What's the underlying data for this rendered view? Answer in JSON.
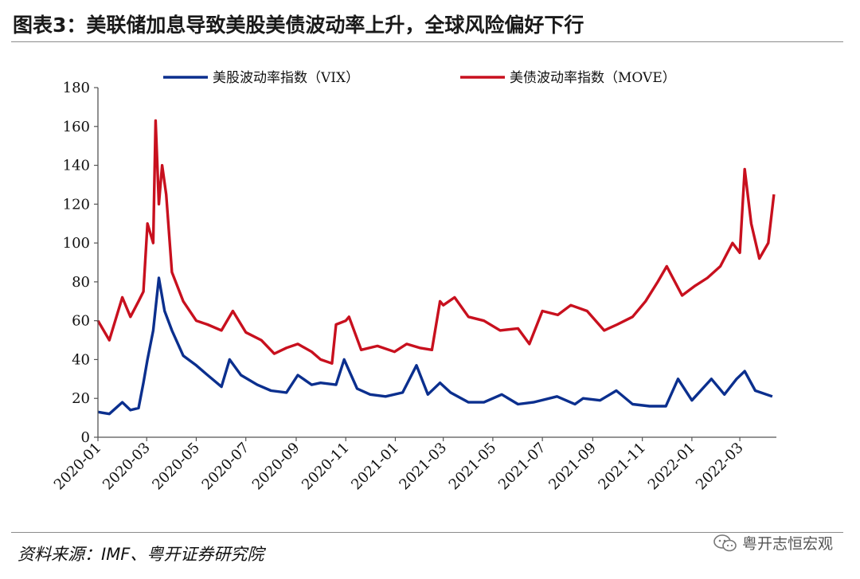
{
  "header": {
    "title": "图表3：美联储加息导致美股美债波动率上升，全球风险偏好下行"
  },
  "footer": {
    "source": "资料来源：IMF、粤开证券研究院",
    "watermark": "粤开志恒宏观"
  },
  "colors": {
    "vix": "#0b2f8e",
    "move": "#c8101e",
    "axis": "#555555"
  },
  "chart_data": {
    "type": "line",
    "title": "图表3：美联储加息导致美股美债波动率上升，全球风险偏好下行",
    "xlabel": "",
    "ylabel": "",
    "ylim": [
      0,
      180
    ],
    "yticks": [
      0,
      20,
      40,
      60,
      80,
      100,
      120,
      140,
      160,
      180
    ],
    "xlim": [
      "2020-01-01",
      "2022-04-15"
    ],
    "xticks": [
      "2020-01",
      "2020-03",
      "2020-05",
      "2020-07",
      "2020-09",
      "2020-11",
      "2021-01",
      "2021-03",
      "2021-05",
      "2021-07",
      "2021-09",
      "2021-11",
      "2022-01",
      "2022-03"
    ],
    "grid": false,
    "legend_position": "top-center",
    "series": [
      {
        "name": "美股波动率指数（VIX）",
        "x": [
          "2020-01-01",
          "2020-01-15",
          "2020-01-31",
          "2020-02-10",
          "2020-02-20",
          "2020-02-26",
          "2020-03-02",
          "2020-03-09",
          "2020-03-16",
          "2020-03-23",
          "2020-04-01",
          "2020-04-15",
          "2020-05-01",
          "2020-05-15",
          "2020-06-01",
          "2020-06-11",
          "2020-06-25",
          "2020-07-15",
          "2020-08-01",
          "2020-08-20",
          "2020-09-03",
          "2020-09-20",
          "2020-10-01",
          "2020-10-20",
          "2020-10-30",
          "2020-11-15",
          "2020-12-01",
          "2020-12-20",
          "2021-01-10",
          "2021-01-27",
          "2021-02-10",
          "2021-02-25",
          "2021-03-10",
          "2021-04-01",
          "2021-04-20",
          "2021-05-12",
          "2021-06-01",
          "2021-06-20",
          "2021-07-19",
          "2021-08-10",
          "2021-08-20",
          "2021-09-10",
          "2021-09-30",
          "2021-10-20",
          "2021-11-10",
          "2021-11-30",
          "2021-12-15",
          "2022-01-01",
          "2022-01-25",
          "2022-02-10",
          "2022-02-25",
          "2022-03-07",
          "2022-03-20",
          "2022-04-10"
        ],
        "y": [
          13,
          12,
          18,
          14,
          15,
          28,
          40,
          55,
          82,
          65,
          55,
          42,
          37,
          32,
          26,
          40,
          32,
          27,
          24,
          23,
          32,
          27,
          28,
          27,
          40,
          25,
          22,
          21,
          23,
          37,
          22,
          28,
          23,
          18,
          18,
          22,
          17,
          18,
          21,
          17,
          20,
          19,
          24,
          17,
          16,
          16,
          30,
          19,
          30,
          22,
          30,
          34,
          24,
          21
        ]
      },
      {
        "name": "美债波动率指数（MOVE）",
        "x": [
          "2020-01-01",
          "2020-01-15",
          "2020-01-31",
          "2020-02-10",
          "2020-02-20",
          "2020-02-26",
          "2020-03-02",
          "2020-03-09",
          "2020-03-12",
          "2020-03-16",
          "2020-03-20",
          "2020-03-25",
          "2020-04-01",
          "2020-04-15",
          "2020-05-01",
          "2020-05-15",
          "2020-06-01",
          "2020-06-15",
          "2020-07-01",
          "2020-07-20",
          "2020-08-05",
          "2020-08-20",
          "2020-09-03",
          "2020-09-20",
          "2020-10-01",
          "2020-10-15",
          "2020-10-20",
          "2020-11-01",
          "2020-11-05",
          "2020-11-20",
          "2020-12-10",
          "2020-12-31",
          "2021-01-15",
          "2021-01-31",
          "2021-02-15",
          "2021-02-25",
          "2021-03-01",
          "2021-03-15",
          "2021-04-01",
          "2021-04-20",
          "2021-05-10",
          "2021-06-01",
          "2021-06-15",
          "2021-07-01",
          "2021-07-20",
          "2021-08-05",
          "2021-08-25",
          "2021-09-15",
          "2021-10-01",
          "2021-10-20",
          "2021-11-05",
          "2021-11-20",
          "2021-12-01",
          "2021-12-20",
          "2022-01-05",
          "2022-01-20",
          "2022-02-05",
          "2022-02-20",
          "2022-03-01",
          "2022-03-07",
          "2022-03-15",
          "2022-03-25",
          "2022-04-05",
          "2022-04-12"
        ],
        "y": [
          60,
          50,
          72,
          62,
          70,
          75,
          110,
          100,
          163,
          120,
          140,
          125,
          85,
          70,
          60,
          58,
          55,
          65,
          54,
          50,
          43,
          46,
          48,
          44,
          40,
          38,
          58,
          60,
          62,
          45,
          47,
          44,
          48,
          46,
          45,
          70,
          68,
          72,
          62,
          60,
          55,
          56,
          48,
          65,
          63,
          68,
          65,
          55,
          58,
          62,
          70,
          80,
          88,
          73,
          78,
          82,
          88,
          100,
          95,
          138,
          110,
          92,
          100,
          125
        ]
      }
    ]
  }
}
